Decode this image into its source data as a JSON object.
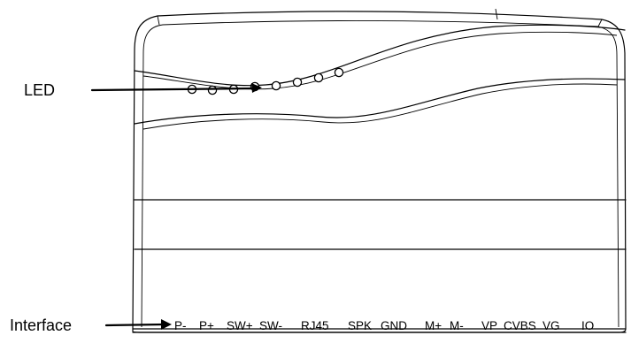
{
  "callouts": {
    "led_label": "LED",
    "interface_label": "Interface"
  },
  "device": {
    "led_count": 8
  },
  "ports": [
    {
      "label": "P-"
    },
    {
      "label": "P+"
    },
    {
      "label": "SW+"
    },
    {
      "label": "SW-"
    },
    {
      "label": "RJ45"
    },
    {
      "label": "SPK"
    },
    {
      "label": "GND"
    },
    {
      "label": "M+"
    },
    {
      "label": "M-"
    },
    {
      "label": "VP"
    },
    {
      "label": "CVBS"
    },
    {
      "label": "VG"
    },
    {
      "label": "IO"
    }
  ],
  "colors": {
    "line": "#000000",
    "background": "#ffffff"
  }
}
